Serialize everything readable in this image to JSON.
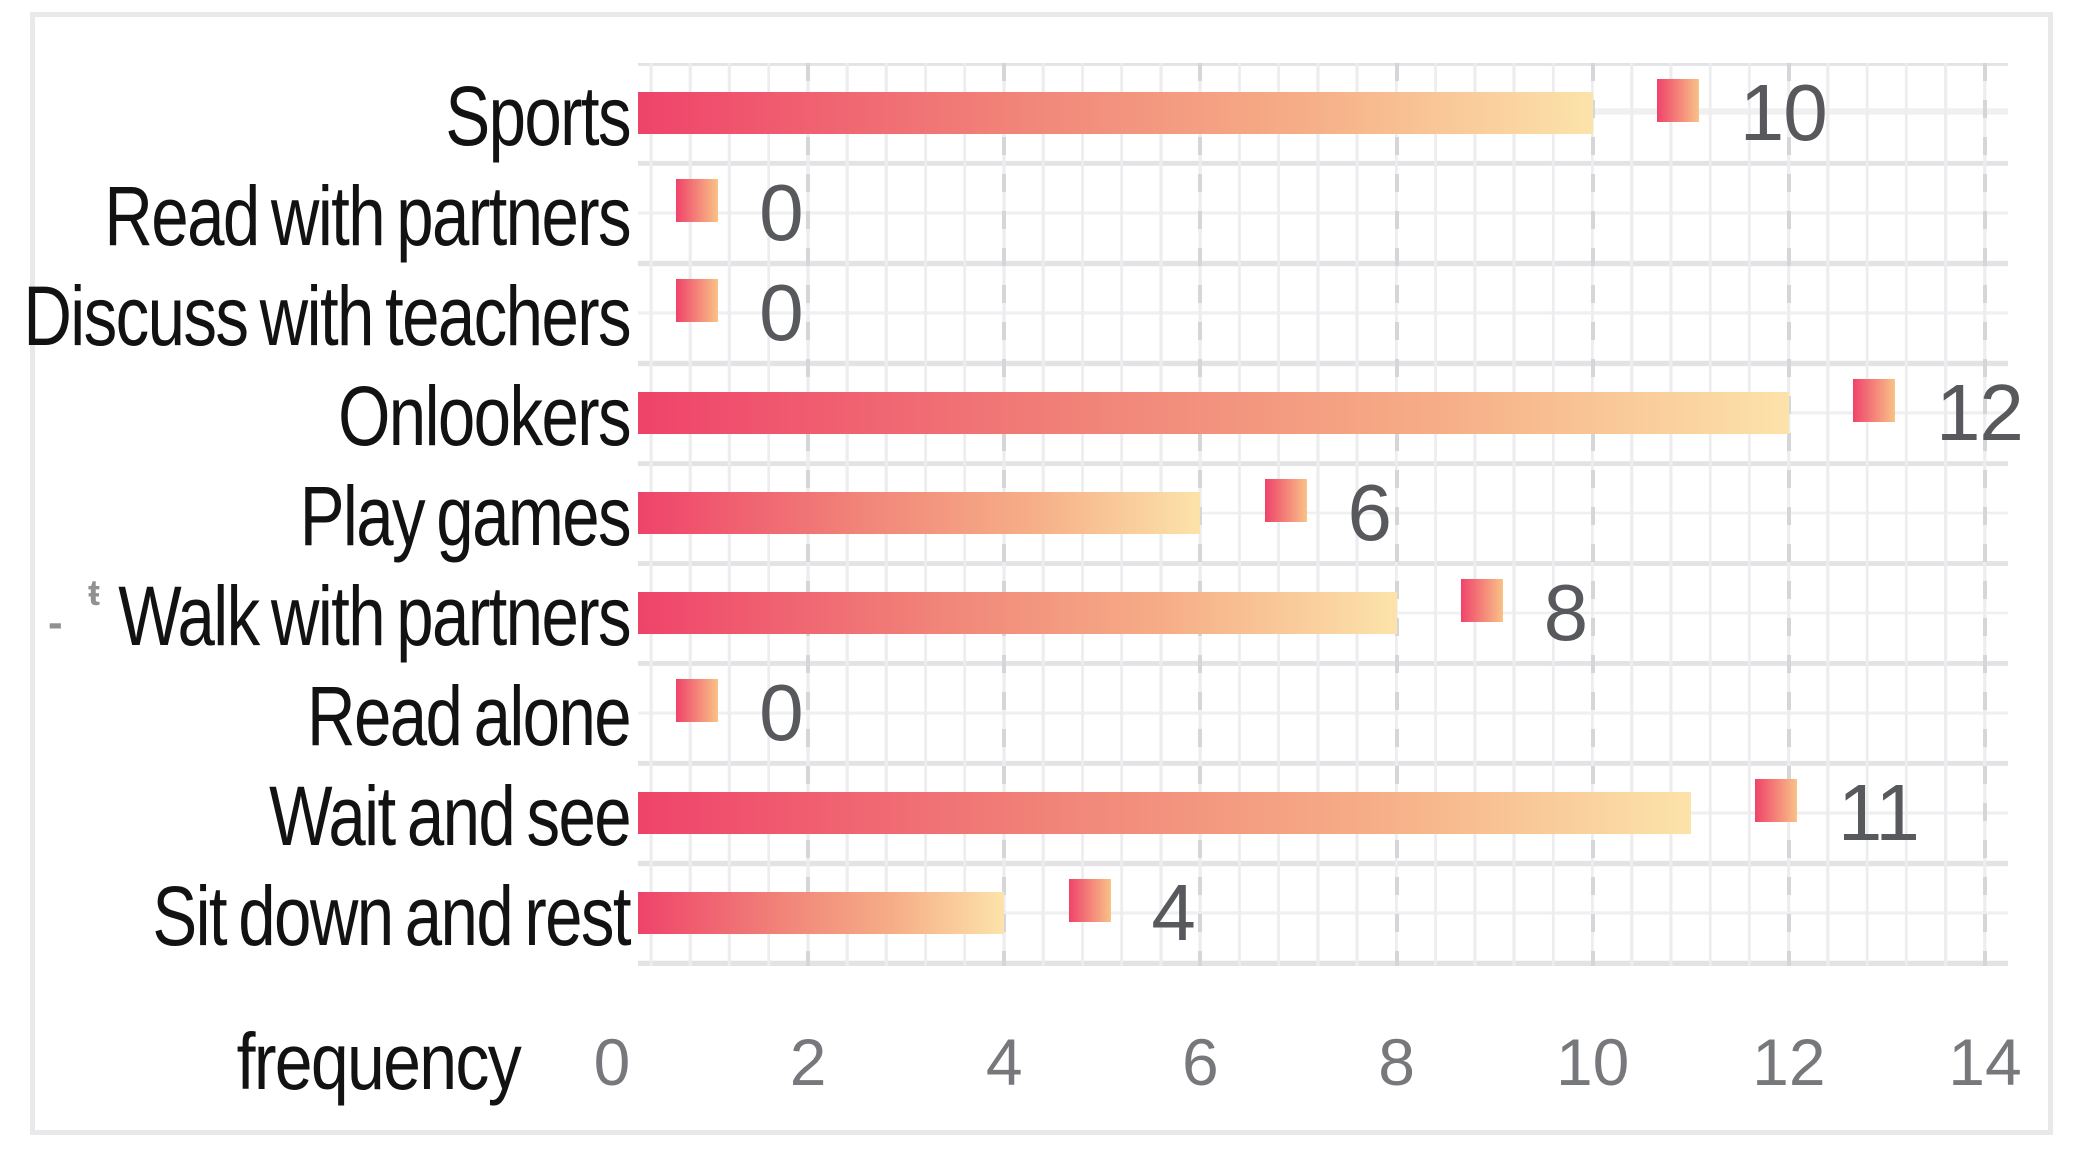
{
  "chart_data": {
    "type": "bar",
    "orientation": "horizontal",
    "title": "",
    "xlabel": "frequency",
    "ylabel": "",
    "categories": [
      "Sports",
      "Read with partners",
      "Discuss with teachers",
      "Onlookers",
      "Play games",
      "Walk with partners",
      "Read alone",
      "Wait and see",
      "Sit down and rest"
    ],
    "values": [
      10,
      0,
      0,
      12,
      6,
      8,
      0,
      11,
      4
    ],
    "value_labels": [
      "10",
      "0",
      "0",
      "12",
      "6",
      "8",
      "0",
      "11",
      "4"
    ],
    "xticks": [
      "0",
      "2",
      "4",
      "6",
      "8",
      "10",
      "12",
      "14"
    ],
    "xlim": [
      0,
      14.2
    ],
    "grid": "on",
    "legend": "none",
    "colors": {
      "bar_gradient_stops": [
        "#EF436A",
        "#F18579",
        "#F6AE87",
        "#FCE3AA"
      ],
      "marker_gradient_stops": [
        "#EF436A",
        "#F9C287"
      ],
      "value_label_color": "#58595C",
      "tick_label_color": "#77787B",
      "category_label_color": "#121212",
      "xlabel_color": "#121212",
      "grid_minor_color": "#EDEDEF",
      "grid_major_dash_color": "#D6D6D9",
      "frame_border_color": "#E9E9EB"
    }
  },
  "decoration": {
    "y_axis_fragment_glyph": "ŧ",
    "y_axis_fragment_dash": "-"
  }
}
